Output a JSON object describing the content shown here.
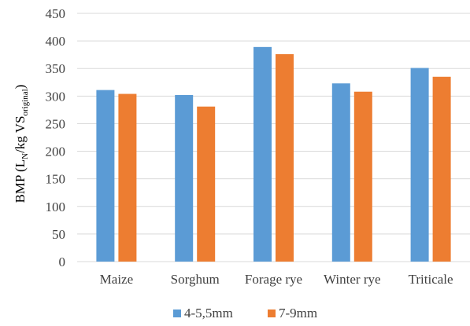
{
  "chart_data": {
    "type": "bar",
    "title": "",
    "xlabel": "",
    "ylabel": {
      "prefix": "BMP (L",
      "sub1": "N",
      "middle": "/kg VS",
      "sub2": "original",
      "suffix": ")"
    },
    "ylim": [
      0,
      450
    ],
    "yticks": [
      0,
      50,
      100,
      150,
      200,
      250,
      300,
      350,
      400,
      450
    ],
    "grid": true,
    "legend_position": "bottom",
    "categories": [
      "Maize",
      "Sorghum",
      "Forage rye",
      "Winter rye",
      "Triticale"
    ],
    "series": [
      {
        "name": "4-5,5mm",
        "color": "#5b9bd5",
        "values": [
          311,
          302,
          389,
          323,
          351
        ]
      },
      {
        "name": "7-9mm",
        "color": "#ed7d31",
        "values": [
          304,
          281,
          376,
          308,
          335
        ]
      }
    ]
  }
}
